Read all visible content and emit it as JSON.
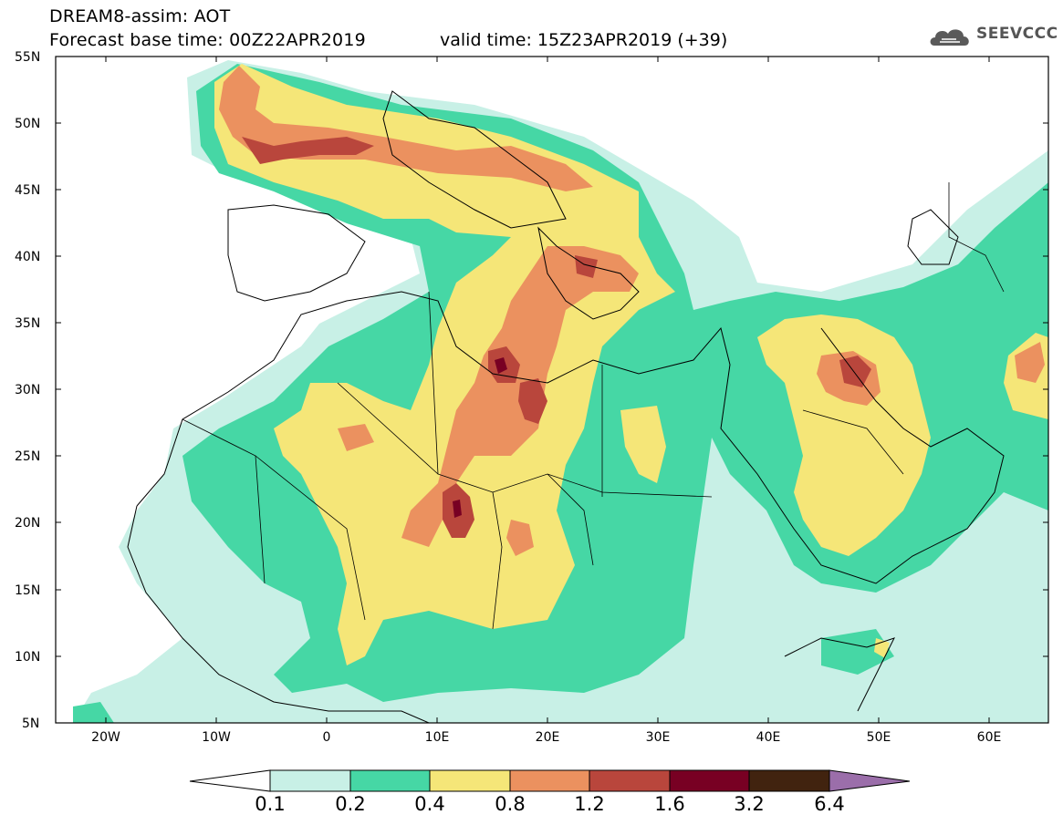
{
  "header": {
    "title": "DREAM8-assim: AOT",
    "base_time": "Forecast base time: 00Z22APR2019",
    "valid_time": "valid time: 15Z23APR2019 (+39)",
    "logo_text": "SEEVCCC"
  },
  "map": {
    "lon_range": [
      -25,
      65
    ],
    "lat_range": [
      5,
      55
    ],
    "lat_labels": [
      "55N",
      "50N",
      "45N",
      "40N",
      "35N",
      "30N",
      "25N",
      "20N",
      "15N",
      "10N",
      "5N"
    ],
    "lon_labels": [
      "20W",
      "10W",
      "0",
      "10E",
      "20E",
      "30E",
      "40E",
      "50E",
      "60E"
    ],
    "frame_color": "#000000"
  },
  "colorbar": {
    "labels": [
      "0.1",
      "0.2",
      "0.4",
      "0.8",
      "1.2",
      "1.6",
      "3.2",
      "6.4"
    ],
    "colors": [
      "#ffffff",
      "#c8f0e6",
      "#46d7a5",
      "#f5e678",
      "#eb915f",
      "#b9463c",
      "#780023",
      "#41230f",
      "#9b6eaa"
    ]
  },
  "levels": {
    "l1": "#c8f0e6",
    "l2": "#46d7a5",
    "l3": "#f5e678",
    "l4": "#eb915f",
    "l5": "#b9463c",
    "l6": "#780023"
  }
}
